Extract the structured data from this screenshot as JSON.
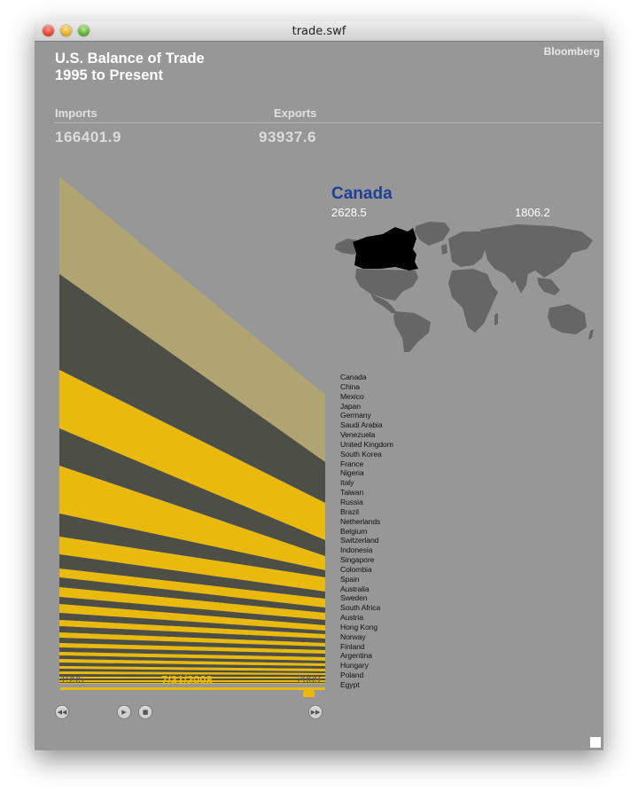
{
  "window": {
    "title": "trade.swf"
  },
  "header": {
    "title_line1": "U.S. Balance of Trade",
    "title_line2": "1995 to Present",
    "brand": "Bloomberg"
  },
  "totals": {
    "imports_label": "Imports",
    "exports_label": "Exports",
    "imports_value": "166401.9",
    "exports_value": "93937.6"
  },
  "selected_country": {
    "name": "Canada",
    "imports": "2628.5",
    "exports": "1806.2"
  },
  "countries": [
    "Canada",
    "China",
    "Mexico",
    "Japan",
    "Germany",
    "Saudi Arabia",
    "Venezuela",
    "United Kingdom",
    "South Korea",
    "France",
    "Nigeria",
    "Italy",
    "Taiwan",
    "Russia",
    "Brazil",
    "Netherlands",
    "Belgium",
    "Switzerland",
    "Indonesia",
    "Singapore",
    "Colombia",
    "Spain",
    "Australia",
    "Sweden",
    "South Africa",
    "Austria",
    "Hong Kong",
    "Norway",
    "Finland",
    "Argentina",
    "Hungary",
    "Poland",
    "Egypt"
  ],
  "timeline": {
    "start_year": "1995",
    "end_year": "2009",
    "current_date": "7/31/2008",
    "position": 0.94
  },
  "controls": [
    "rewind-button",
    "play-button",
    "stop-button",
    "fast-forward-button"
  ],
  "colors": {
    "background": "#979797",
    "band_tan": "#b0a572",
    "band_dark": "#4d4f47",
    "band_yellow": "#e9b90c",
    "country_name": "#1f3f9a",
    "map_land": "#666666",
    "map_highlight": "#000000"
  }
}
